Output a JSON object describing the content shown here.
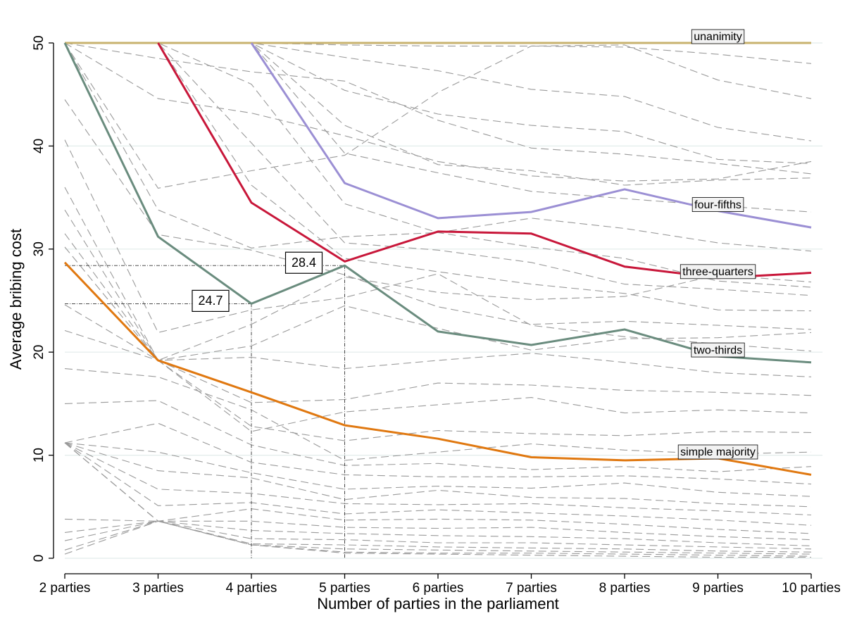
{
  "chart_data": {
    "type": "line",
    "title": "",
    "xlabel": "Number of parties in the parliament",
    "ylabel": "Average bribing cost",
    "categories": [
      "2 parties",
      "3 parties",
      "4 parties",
      "5 parties",
      "6 parties",
      "7 parties",
      "8 parties",
      "9 parties",
      "10 parties"
    ],
    "ylim": [
      0,
      50
    ],
    "yticks": [
      0,
      10,
      20,
      30,
      40,
      50
    ],
    "grid": true,
    "series": [
      {
        "name": "unanimity",
        "color": "#c8b26e",
        "values": [
          50,
          50,
          50,
          50,
          50,
          50,
          50,
          50,
          50
        ]
      },
      {
        "name": "four-fifths",
        "color": "#9b8fd4",
        "values": [
          null,
          null,
          50,
          36.4,
          33.0,
          33.6,
          35.8,
          33.7,
          32.1
        ]
      },
      {
        "name": "three-quarters",
        "color": "#c8173a",
        "values": [
          null,
          50,
          34.5,
          28.8,
          31.7,
          31.5,
          28.3,
          27.2,
          27.7
        ]
      },
      {
        "name": "two-thirds",
        "color": "#6a8c7e",
        "values": [
          50,
          31.2,
          24.7,
          28.4,
          22.0,
          20.7,
          22.2,
          19.6,
          19.0
        ]
      },
      {
        "name": "simple majority",
        "color": "#e07810",
        "values": [
          28.7,
          19.2,
          16.1,
          12.9,
          11.6,
          9.8,
          9.5,
          9.7,
          8.1
        ]
      }
    ],
    "background_series": [
      [
        50,
        48.5,
        47.2,
        46.3,
        42.5,
        39.8,
        39.2,
        38.3,
        37.3
      ],
      [
        50,
        44.6,
        43.2,
        41.0,
        38.5,
        37.1,
        36.6,
        36.8,
        38.5
      ],
      [
        50,
        33.8,
        30.1,
        31.2,
        31.6,
        33.0,
        32.0,
        30.6,
        29.8
      ],
      [
        50,
        35.9,
        37.6,
        39.1,
        45.2,
        49.7,
        49.8,
        46.4,
        44.6
      ],
      [
        50,
        50,
        50,
        49.8,
        49.7,
        49.7,
        49.6,
        48.9,
        48.0
      ],
      [
        50,
        50,
        50,
        48.6,
        47.3,
        45.5,
        44.8,
        41.8,
        40.5
      ],
      [
        50,
        50,
        50,
        45.4,
        43.1,
        42.0,
        41.4,
        38.7,
        38.3
      ],
      [
        50,
        50,
        50,
        42.0,
        38.2,
        37.6,
        36.2,
        36.7,
        36.9
      ],
      [
        50,
        50,
        50,
        39.3,
        37.4,
        35.6,
        34.9,
        34.2,
        33.6
      ],
      [
        50,
        50,
        46.0,
        34.4,
        31.6,
        30.2,
        29.1,
        26.9,
        26.3
      ],
      [
        50,
        50,
        40.3,
        30.6,
        29.9,
        28.7,
        26.6,
        26.1,
        25.5
      ],
      [
        50,
        50,
        36.2,
        29.1,
        27.8,
        26.6,
        25.7,
        24.1,
        24.0
      ],
      [
        44.5,
        31.4,
        29.9,
        27.5,
        24.4,
        22.7,
        23.0,
        22.6,
        22.2
      ],
      [
        40.6,
        21.9,
        24.1,
        25.3,
        27.6,
        22.6,
        21.5,
        20.8,
        20.1
      ],
      [
        36.0,
        19.2,
        19.5,
        18.4,
        19.2,
        19.9,
        19.0,
        18.0,
        17.6
      ],
      [
        31.5,
        19.2,
        15.1,
        15.4,
        17.0,
        16.8,
        16.3,
        16.1,
        15.8
      ],
      [
        24.6,
        19.2,
        12.3,
        14.2,
        14.9,
        15.6,
        14.1,
        14.4,
        14.1
      ],
      [
        22.1,
        19.2,
        12.8,
        11.4,
        12.4,
        12.1,
        11.9,
        12.3,
        12.2
      ],
      [
        18.4,
        17.6,
        14.4,
        9.5,
        10.3,
        11.1,
        10.5,
        10.1,
        10.3
      ],
      [
        15.0,
        15.3,
        11.0,
        9.0,
        9.2,
        8.6,
        8.9,
        8.4,
        8.9
      ],
      [
        11.2,
        13.1,
        9.3,
        8.1,
        7.9,
        7.9,
        8.0,
        7.7,
        7.2
      ],
      [
        11.2,
        10.3,
        8.3,
        6.7,
        7.0,
        6.8,
        7.3,
        6.4,
        6.0
      ],
      [
        11.2,
        8.5,
        7.8,
        5.7,
        6.6,
        5.9,
        5.8,
        5.3,
        5.0
      ],
      [
        11.2,
        6.7,
        6.3,
        5.3,
        5.2,
        5.3,
        4.9,
        4.6,
        4.2
      ],
      [
        11.2,
        5.1,
        5.4,
        4.3,
        4.7,
        4.4,
        4.1,
        3.7,
        3.2
      ],
      [
        11.2,
        3.6,
        4.8,
        3.7,
        3.8,
        3.7,
        3.3,
        2.8,
        2.4
      ],
      [
        11.2,
        3.6,
        3.6,
        3.0,
        2.9,
        3.0,
        2.5,
        2.1,
        1.8
      ],
      [
        11.2,
        3.6,
        2.7,
        2.4,
        2.2,
        2.1,
        1.9,
        1.5,
        1.2
      ],
      [
        3.8,
        3.6,
        1.9,
        1.8,
        1.5,
        1.5,
        1.3,
        1.1,
        0.9
      ],
      [
        2.5,
        3.6,
        1.4,
        1.3,
        1.1,
        1.0,
        0.9,
        0.7,
        0.6
      ],
      [
        1.7,
        3.6,
        1.3,
        0.9,
        0.8,
        0.7,
        0.6,
        0.5,
        0.4
      ],
      [
        0.8,
        3.6,
        1.3,
        0.6,
        0.5,
        0.5,
        0.4,
        0.3,
        0.2
      ],
      [
        0.4,
        3.6,
        1.3,
        0.5,
        0.4,
        0.3,
        0.2,
        0.1,
        0.1
      ],
      [
        30.2,
        19.2,
        20.6,
        24.5,
        22.3,
        20.2,
        21.3,
        21.4,
        21.9
      ],
      [
        33.8,
        19.2,
        22.7,
        27.3,
        25.8,
        25.1,
        25.4,
        27.5,
        26.8
      ]
    ],
    "annotations": [
      {
        "text": "28.4",
        "category_index": 3,
        "y": 28.4
      },
      {
        "text": "24.7",
        "category_index": 2,
        "y": 24.7
      }
    ]
  }
}
